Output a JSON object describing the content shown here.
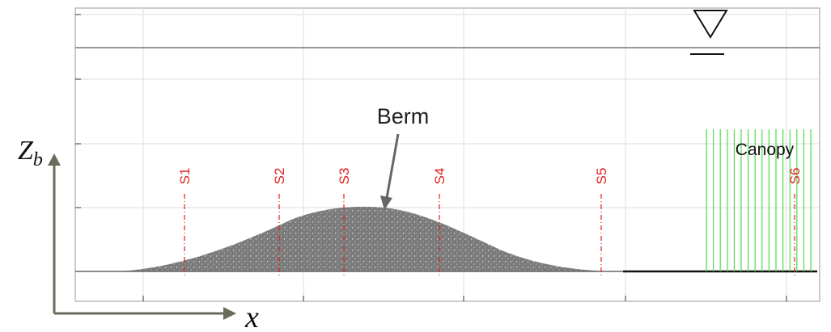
{
  "labels": {
    "berm": "Berm",
    "canopy": "Canopy"
  },
  "sections": [
    "S1",
    "S2",
    "S3",
    "S4",
    "S5",
    "S6"
  ],
  "axes": {
    "vertical": {
      "main": "Z",
      "sub": "b"
    },
    "horizontal": "x"
  }
}
